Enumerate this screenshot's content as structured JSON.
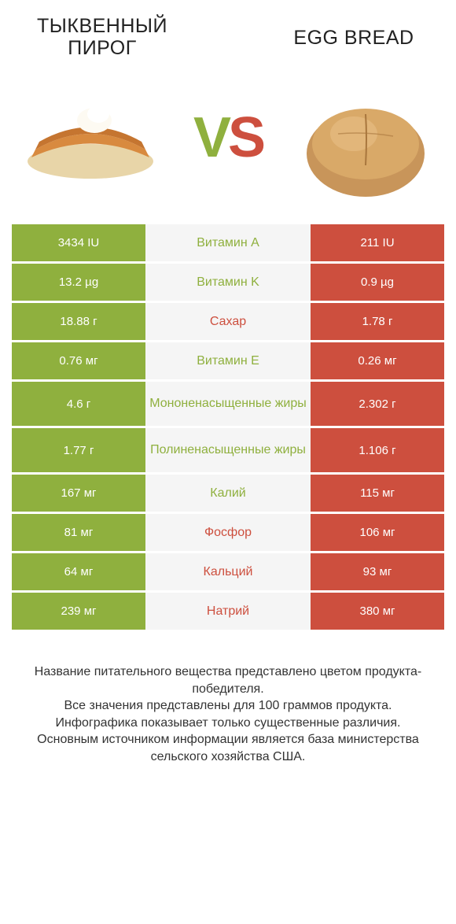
{
  "header": {
    "left_title": "ТЫКВЕННЫЙ ПИРОГ",
    "right_title": "EGG BREAD",
    "vs_v": "V",
    "vs_s": "S"
  },
  "colors": {
    "left": "#8fb03e",
    "right": "#cd4f3e",
    "mid_bg": "#f5f5f5",
    "page_bg": "#ffffff",
    "text": "#333333"
  },
  "comparison": {
    "type": "infographic-table",
    "left_food": "pumpkin-pie",
    "right_food": "egg-bread",
    "rows": [
      {
        "left": "3434 IU",
        "label": "Витамин A",
        "right": "211 IU",
        "winner": "left",
        "tall": false
      },
      {
        "left": "13.2 µg",
        "label": "Витамин K",
        "right": "0.9 µg",
        "winner": "left",
        "tall": false
      },
      {
        "left": "18.88 г",
        "label": "Сахар",
        "right": "1.78 г",
        "winner": "right",
        "tall": false
      },
      {
        "left": "0.76 мг",
        "label": "Витамин E",
        "right": "0.26 мг",
        "winner": "left",
        "tall": false
      },
      {
        "left": "4.6 г",
        "label": "Мононенасыщенные жиры",
        "right": "2.302 г",
        "winner": "left",
        "tall": true
      },
      {
        "left": "1.77 г",
        "label": "Полиненасыщенные жиры",
        "right": "1.106 г",
        "winner": "left",
        "tall": true
      },
      {
        "left": "167 мг",
        "label": "Калий",
        "right": "115 мг",
        "winner": "left",
        "tall": false
      },
      {
        "left": "81 мг",
        "label": "Фосфор",
        "right": "106 мг",
        "winner": "right",
        "tall": false
      },
      {
        "left": "64 мг",
        "label": "Кальций",
        "right": "93 мг",
        "winner": "right",
        "tall": false
      },
      {
        "left": "239 мг",
        "label": "Натрий",
        "right": "380 мг",
        "winner": "right",
        "tall": false
      }
    ]
  },
  "footer": {
    "line1": "Название питательного вещества представлено цветом продукта-победителя.",
    "line2": "Все значения представлены для 100 граммов продукта.",
    "line3": "Инфографика показывает только существенные различия.",
    "line4": "Основным источником информации является база министерства сельского хозяйства США."
  }
}
